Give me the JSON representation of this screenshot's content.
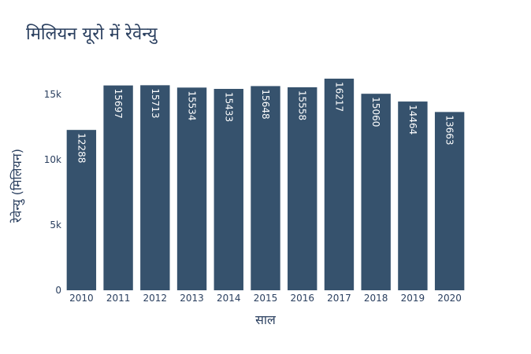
{
  "chart_data": {
    "type": "bar",
    "title": "मिलियन यूरो में रेवेन्यु",
    "xlabel": "साल",
    "ylabel": "रेवेन्यु (मिलियन)",
    "categories": [
      "2010",
      "2011",
      "2012",
      "2013",
      "2014",
      "2015",
      "2016",
      "2017",
      "2018",
      "2019",
      "2020"
    ],
    "values": [
      12288,
      15697,
      15713,
      15534,
      15433,
      15648,
      15558,
      16217,
      15060,
      14464,
      13663
    ],
    "ylim": [
      0,
      17000
    ],
    "yticks": [
      0,
      5000,
      10000,
      15000
    ],
    "ytick_labels": [
      "0",
      "5k",
      "10k",
      "15k"
    ],
    "bar_color": "#36526d",
    "label_color": "#ffffff",
    "text_color": "#2a3f5f",
    "grid": false,
    "legend": false
  }
}
